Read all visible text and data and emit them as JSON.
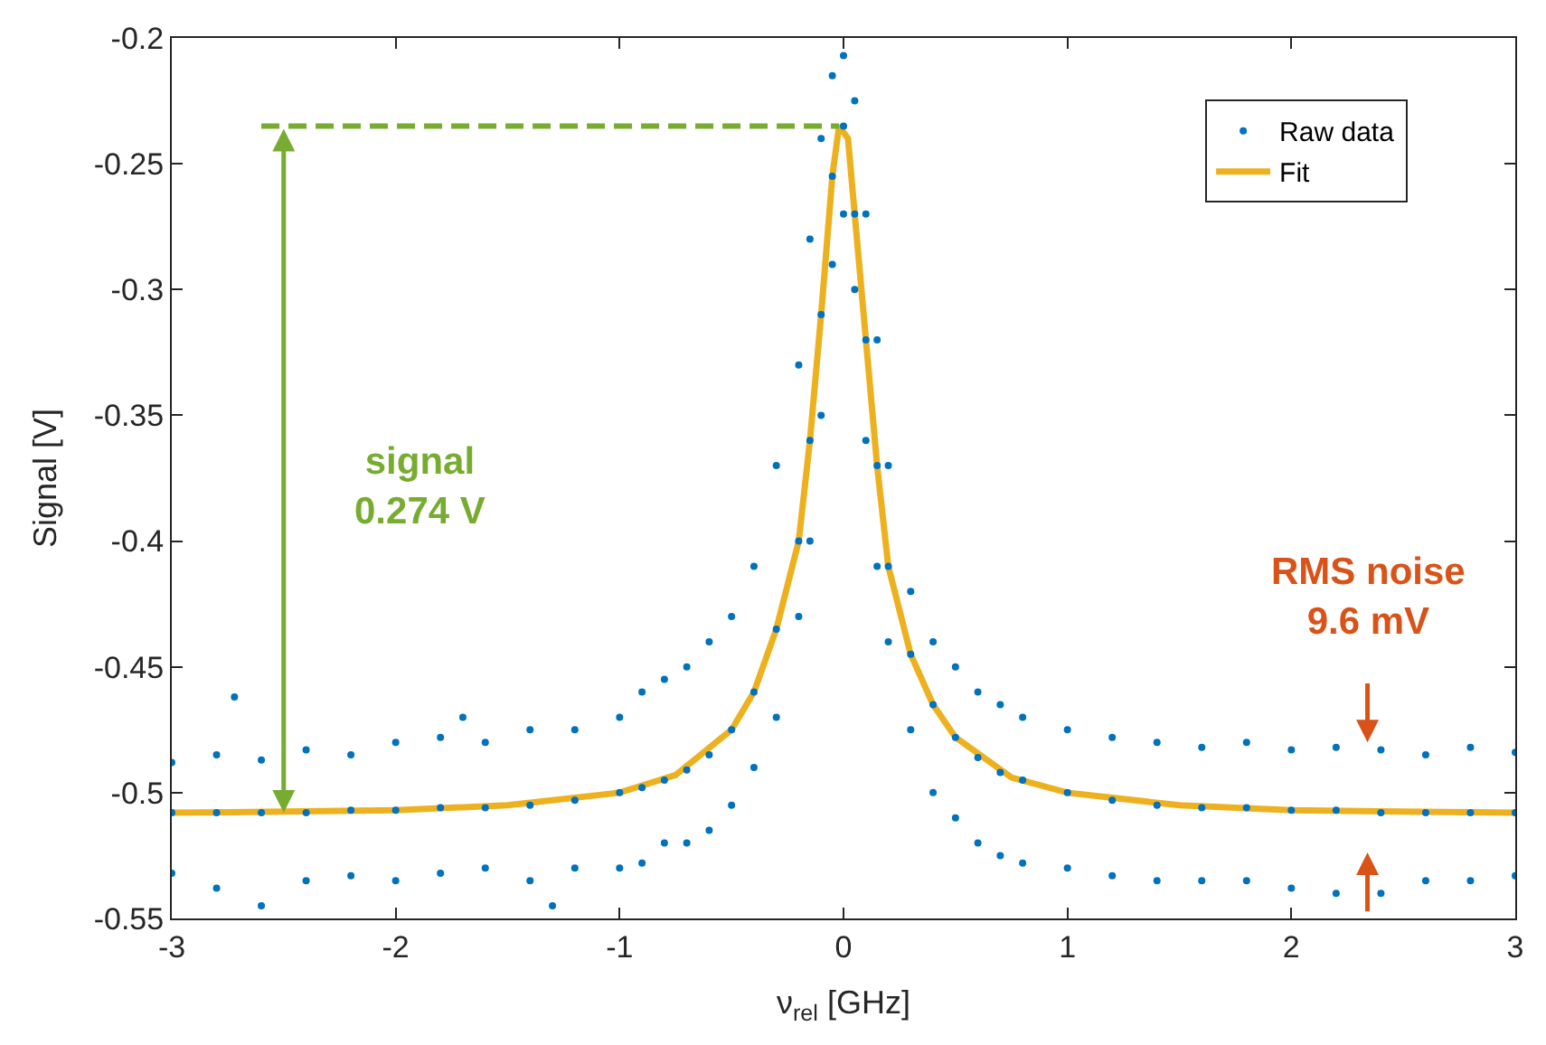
{
  "chart_data": {
    "type": "scatter",
    "xlabel": "ν$_{rel}$ [GHz]",
    "ylabel": "Signal [V]",
    "xlim": [
      -3,
      3
    ],
    "xticks": [
      -3,
      -2,
      -1,
      0,
      1,
      2,
      3
    ],
    "ylim": [
      -0.55,
      -0.2
    ],
    "yticks": [
      -0.55,
      -0.5,
      -0.45,
      -0.4,
      -0.35,
      -0.3,
      -0.25,
      -0.2
    ],
    "grid": false,
    "legend": "top right",
    "series": [
      {
        "name": "Raw data",
        "marker": "circle",
        "color": "#0072bd",
        "x": [
          -3,
          -3,
          -3,
          -2.8,
          -2.8,
          -2.8,
          -2.72,
          -2.6,
          -2.6,
          -2.6,
          -2.4,
          -2.4,
          -2.4,
          -2.2,
          -2.2,
          -2.2,
          -2,
          -2,
          -2,
          -1.8,
          -1.8,
          -1.8,
          -1.7,
          -1.6,
          -1.6,
          -1.6,
          -1.4,
          -1.4,
          -1.4,
          -1.3,
          -1.2,
          -1.2,
          -1.2,
          -1,
          -1,
          -1,
          -0.9,
          -0.9,
          -0.9,
          -0.8,
          -0.8,
          -0.8,
          -0.7,
          -0.7,
          -0.7,
          -0.6,
          -0.6,
          -0.6,
          -0.5,
          -0.5,
          -0.5,
          -0.4,
          -0.4,
          -0.4,
          -0.3,
          -0.3,
          -0.3,
          -0.2,
          -0.2,
          -0.2,
          -0.15,
          -0.15,
          -0.15,
          -0.1,
          -0.1,
          -0.1,
          -0.05,
          -0.05,
          -0.05,
          0,
          0,
          0,
          0.05,
          0.05,
          0.05,
          0.1,
          0.1,
          0.1,
          0.15,
          0.15,
          0.15,
          0.2,
          0.2,
          0.2,
          0.3,
          0.3,
          0.3,
          0.4,
          0.4,
          0.4,
          0.5,
          0.5,
          0.5,
          0.6,
          0.6,
          0.6,
          0.7,
          0.7,
          0.7,
          0.8,
          0.8,
          0.8,
          1,
          1,
          1,
          1.2,
          1.2,
          1.2,
          1.4,
          1.4,
          1.4,
          1.6,
          1.6,
          1.6,
          1.8,
          1.8,
          1.8,
          2,
          2,
          2,
          2.2,
          2.2,
          2.2,
          2.4,
          2.4,
          2.4,
          2.6,
          2.6,
          2.6,
          2.8,
          2.8,
          2.8,
          3,
          3,
          3
        ],
        "values": [
          -0.488,
          -0.508,
          -0.532,
          -0.485,
          -0.508,
          -0.538,
          -0.462,
          -0.487,
          -0.508,
          -0.545,
          -0.483,
          -0.508,
          -0.535,
          -0.485,
          -0.507,
          -0.533,
          -0.48,
          -0.507,
          -0.535,
          -0.478,
          -0.506,
          -0.532,
          -0.47,
          -0.48,
          -0.506,
          -0.53,
          -0.475,
          -0.505,
          -0.535,
          -0.545,
          -0.475,
          -0.503,
          -0.53,
          -0.47,
          -0.5,
          -0.53,
          -0.46,
          -0.498,
          -0.528,
          -0.455,
          -0.495,
          -0.52,
          -0.45,
          -0.491,
          -0.52,
          -0.44,
          -0.485,
          -0.515,
          -0.43,
          -0.475,
          -0.505,
          -0.41,
          -0.46,
          -0.49,
          -0.37,
          -0.435,
          -0.47,
          -0.33,
          -0.4,
          -0.43,
          -0.28,
          -0.36,
          -0.4,
          -0.24,
          -0.31,
          -0.35,
          -0.215,
          -0.255,
          -0.29,
          -0.207,
          -0.235,
          -0.27,
          -0.225,
          -0.27,
          -0.3,
          -0.27,
          -0.32,
          -0.36,
          -0.32,
          -0.37,
          -0.41,
          -0.37,
          -0.41,
          -0.44,
          -0.42,
          -0.445,
          -0.475,
          -0.44,
          -0.465,
          -0.5,
          -0.45,
          -0.478,
          -0.51,
          -0.46,
          -0.486,
          -0.52,
          -0.465,
          -0.492,
          -0.525,
          -0.47,
          -0.495,
          -0.528,
          -0.475,
          -0.5,
          -0.53,
          -0.478,
          -0.503,
          -0.533,
          -0.48,
          -0.505,
          -0.535,
          -0.482,
          -0.506,
          -0.535,
          -0.48,
          -0.506,
          -0.535,
          -0.483,
          -0.507,
          -0.538,
          -0.482,
          -0.507,
          -0.54,
          -0.483,
          -0.508,
          -0.54,
          -0.485,
          -0.508,
          -0.535,
          -0.482,
          -0.508,
          -0.535,
          -0.484,
          -0.508,
          -0.533
        ]
      },
      {
        "name": "Fit",
        "type": "line",
        "marker": "none",
        "color": "#edb120",
        "x": [
          -3,
          -2,
          -1.5,
          -1,
          -0.75,
          -0.5,
          -0.4,
          -0.3,
          -0.2,
          -0.15,
          -0.1,
          -0.05,
          -0.02,
          0.02,
          0.05,
          0.1,
          0.15,
          0.2,
          0.3,
          0.4,
          0.5,
          0.75,
          1,
          1.5,
          2,
          3
        ],
        "values": [
          -0.508,
          -0.507,
          -0.505,
          -0.5,
          -0.493,
          -0.475,
          -0.46,
          -0.435,
          -0.4,
          -0.36,
          -0.31,
          -0.255,
          -0.235,
          -0.24,
          -0.27,
          -0.32,
          -0.37,
          -0.41,
          -0.445,
          -0.465,
          -0.478,
          -0.494,
          -0.5,
          -0.505,
          -0.507,
          -0.508
        ]
      },
      {
        "type": "line",
        "marker": "none",
        "color": "#77ac30",
        "line_style": "dashed",
        "x": [
          -2.6,
          -0.02
        ],
        "values": [
          -0.235,
          -0.235
        ]
      }
    ],
    "annotations": [
      "signal\n0.274 V",
      "RMS noise\n9.6 mV"
    ]
  }
}
